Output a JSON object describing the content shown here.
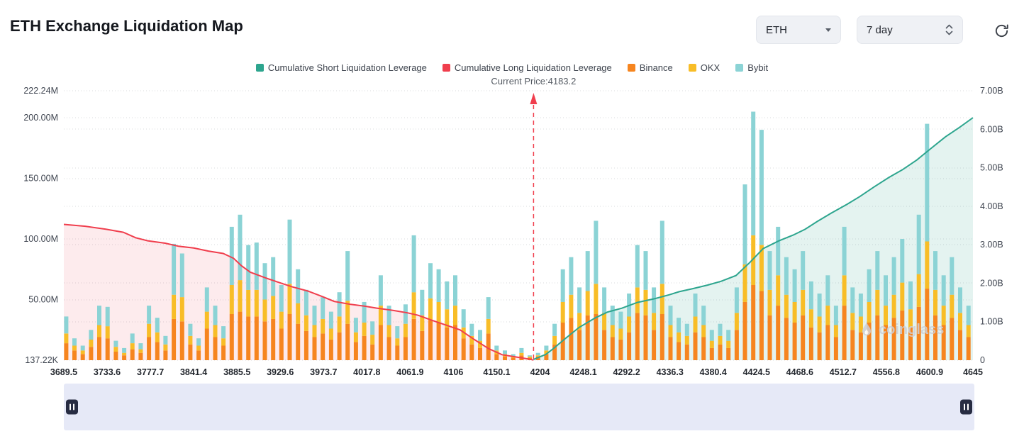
{
  "header": {
    "title": "ETH Exchange Liquidation Map",
    "coin_select": {
      "value": "ETH"
    },
    "range_select": {
      "value": "7 day"
    }
  },
  "icons": {
    "coin_caret": "chevron-down",
    "range_spinner": "chevron-up-down",
    "refresh": "circular-arrow",
    "slider_handle": "pause-bars",
    "watermark_flame": "flame"
  },
  "legend": [
    {
      "key": "short",
      "label": "Cumulative Short Liquidation Leverage",
      "color": "#2da58e"
    },
    {
      "key": "long",
      "label": "Cumulative Long Liquidation Leverage",
      "color": "#f03e4d"
    },
    {
      "key": "binance",
      "label": "Binance",
      "color": "#f6851f"
    },
    {
      "key": "okx",
      "label": "OKX",
      "color": "#f8bd27"
    },
    {
      "key": "bybit",
      "label": "Bybit",
      "color": "#8bd3d5"
    }
  ],
  "watermark": {
    "text": "coinglass"
  },
  "chart_data": {
    "type": "bar",
    "title": "ETH Exchange Liquidation Map",
    "legend_position": "top",
    "grid": "dotted-horizontal",
    "colors": {
      "short": "#2da58e",
      "long": "#f03e4d",
      "binance": "#f6851f",
      "okx": "#f8bd27",
      "bybit": "#8bd3d5",
      "long_fill": "rgba(240,62,77,0.10)",
      "short_fill": "rgba(45,165,142,0.13)"
    },
    "current_price_annotation": {
      "label": "Current Price:4183.2",
      "value": 4183.2
    },
    "x_axis": {
      "min": 3689.5,
      "max": 4645,
      "labels": [
        "3689.5",
        "3733.6",
        "3777.7",
        "3841.4",
        "3885.5",
        "3929.6",
        "3973.7",
        "4017.8",
        "4061.9",
        "4106",
        "4150.1",
        "4204",
        "4248.1",
        "4292.2",
        "4336.3",
        "4380.4",
        "4424.5",
        "4468.6",
        "4512.7",
        "4556.8",
        "4600.9",
        "4645"
      ],
      "values": [
        3689.5,
        3733.6,
        3777.7,
        3841.4,
        3885.5,
        3929.6,
        3973.7,
        4017.8,
        4061.9,
        4106,
        4150.1,
        4204,
        4248.1,
        4292.2,
        4336.3,
        4380.4,
        4424.5,
        4468.6,
        4512.7,
        4556.8,
        4600.9,
        4645
      ]
    },
    "y_axis_left": {
      "unit": "M",
      "max": 222.24,
      "labels": [
        "222.24M",
        "200.00M",
        "150.00M",
        "100.00M",
        "50.00M",
        "137.22K"
      ],
      "values": [
        222.24,
        200,
        150,
        100,
        50,
        0.13722
      ]
    },
    "y_axis_right": {
      "unit": "B",
      "max": 7,
      "labels": [
        "7.00B",
        "6.00B",
        "5.00B",
        "4.00B",
        "3.00B",
        "2.00B",
        "1.00B",
        "0"
      ],
      "values": [
        7,
        6,
        5,
        4,
        3,
        2,
        1,
        0
      ]
    },
    "bars": {
      "series_order": [
        "binance",
        "okx",
        "bybit"
      ],
      "unit": "M",
      "start_price": 3692,
      "price_step": 8.7,
      "values_millions": [
        [
          14,
          8,
          14
        ],
        [
          8,
          4,
          6
        ],
        [
          5,
          3,
          4
        ],
        [
          11,
          6,
          8
        ],
        [
          19,
          10,
          16
        ],
        [
          18,
          10,
          16
        ],
        [
          7,
          4,
          5
        ],
        [
          4,
          2,
          4
        ],
        [
          9,
          5,
          8
        ],
        [
          6,
          3,
          5
        ],
        [
          19,
          11,
          15
        ],
        [
          15,
          8,
          12
        ],
        [
          8,
          5,
          7
        ],
        [
          34,
          20,
          42
        ],
        [
          32,
          20,
          36
        ],
        [
          13,
          7,
          10
        ],
        [
          8,
          4,
          6
        ],
        [
          26,
          14,
          20
        ],
        [
          19,
          10,
          16
        ],
        [
          12,
          6,
          10
        ],
        [
          38,
          24,
          48
        ],
        [
          40,
          26,
          54
        ],
        [
          36,
          22,
          37
        ],
        [
          36,
          22,
          39
        ],
        [
          32,
          18,
          30
        ],
        [
          34,
          19,
          32
        ],
        [
          26,
          14,
          22
        ],
        [
          38,
          25,
          53
        ],
        [
          30,
          17,
          28
        ],
        [
          24,
          13,
          21
        ],
        [
          19,
          10,
          16
        ],
        [
          22,
          12,
          18
        ],
        [
          17,
          9,
          14
        ],
        [
          23,
          13,
          20
        ],
        [
          30,
          19,
          41
        ],
        [
          15,
          8,
          12
        ],
        [
          20,
          11,
          17
        ],
        [
          13,
          8,
          11
        ],
        [
          29,
          16,
          25
        ],
        [
          19,
          10,
          16
        ],
        [
          12,
          6,
          10
        ],
        [
          19,
          11,
          16
        ],
        [
          34,
          22,
          47
        ],
        [
          24,
          13,
          21
        ],
        [
          33,
          18,
          29
        ],
        [
          31,
          17,
          27
        ],
        [
          27,
          15,
          23
        ],
        [
          29,
          16,
          25
        ],
        [
          18,
          9,
          15
        ],
        [
          13,
          7,
          10
        ],
        [
          10,
          6,
          9
        ],
        [
          22,
          12,
          18
        ],
        [
          5,
          3,
          4
        ],
        [
          3,
          2,
          3
        ],
        [
          2,
          1,
          2
        ],
        [
          4,
          2,
          4
        ],
        [
          2,
          1,
          1
        ],
        [
          3,
          1,
          2
        ],
        [
          5,
          3,
          4
        ],
        [
          13,
          7,
          10
        ],
        [
          31,
          17,
          27
        ],
        [
          35,
          19,
          31
        ],
        [
          25,
          14,
          21
        ],
        [
          37,
          20,
          33
        ],
        [
          38,
          25,
          52
        ],
        [
          25,
          14,
          21
        ],
        [
          19,
          10,
          16
        ],
        [
          17,
          9,
          14
        ],
        [
          23,
          13,
          19
        ],
        [
          39,
          21,
          35
        ],
        [
          37,
          21,
          32
        ],
        [
          25,
          14,
          21
        ],
        [
          38,
          25,
          52
        ],
        [
          19,
          10,
          16
        ],
        [
          15,
          8,
          12
        ],
        [
          13,
          7,
          10
        ],
        [
          23,
          13,
          19
        ],
        [
          19,
          10,
          16
        ],
        [
          10,
          6,
          9
        ],
        [
          13,
          7,
          10
        ],
        [
          10,
          6,
          9
        ],
        [
          25,
          14,
          21
        ],
        [
          48,
          31,
          66
        ],
        [
          62,
          41,
          102
        ],
        [
          57,
          38,
          95
        ],
        [
          37,
          21,
          32
        ],
        [
          45,
          25,
          40
        ],
        [
          35,
          19,
          31
        ],
        [
          31,
          17,
          27
        ],
        [
          37,
          21,
          32
        ],
        [
          27,
          15,
          23
        ],
        [
          23,
          13,
          19
        ],
        [
          29,
          16,
          25
        ],
        [
          19,
          10,
          16
        ],
        [
          45,
          25,
          40
        ],
        [
          25,
          14,
          21
        ],
        [
          23,
          13,
          19
        ],
        [
          31,
          17,
          27
        ],
        [
          37,
          21,
          32
        ],
        [
          29,
          16,
          25
        ],
        [
          35,
          19,
          31
        ],
        [
          41,
          23,
          36
        ],
        [
          27,
          15,
          23
        ],
        [
          44,
          27,
          49
        ],
        [
          59,
          39,
          97
        ],
        [
          37,
          21,
          32
        ],
        [
          29,
          16,
          25
        ],
        [
          35,
          19,
          31
        ],
        [
          25,
          14,
          21
        ],
        [
          19,
          10,
          16
        ]
      ]
    },
    "long_line_millions": [
      [
        3689.5,
        112
      ],
      [
        3712,
        110.5
      ],
      [
        3733.6,
        108
      ],
      [
        3752,
        105.5
      ],
      [
        3765,
        101
      ],
      [
        3777.7,
        98.5
      ],
      [
        3796,
        96.5
      ],
      [
        3810,
        94
      ],
      [
        3826,
        92.5
      ],
      [
        3841.4,
        90
      ],
      [
        3857,
        88
      ],
      [
        3868,
        84
      ],
      [
        3876,
        78
      ],
      [
        3885.5,
        72.5
      ],
      [
        3901,
        68
      ],
      [
        3916,
        64
      ],
      [
        3929.6,
        60.5
      ],
      [
        3946,
        57
      ],
      [
        3961,
        52.5
      ],
      [
        3973.7,
        48.5
      ],
      [
        3991,
        46
      ],
      [
        4006,
        44.5
      ],
      [
        4017.8,
        43
      ],
      [
        4036,
        41
      ],
      [
        4051,
        39
      ],
      [
        4061.9,
        37
      ],
      [
        4076,
        33
      ],
      [
        4091,
        29
      ],
      [
        4106,
        25
      ],
      [
        4121,
        17
      ],
      [
        4136,
        9.5
      ],
      [
        4150.1,
        4.5
      ],
      [
        4166,
        2.5
      ],
      [
        4178,
        1
      ],
      [
        4183.2,
        0.1
      ]
    ],
    "short_line_billions": [
      [
        4183.2,
        0.02
      ],
      [
        4196,
        0.15
      ],
      [
        4204,
        0.3
      ],
      [
        4216,
        0.55
      ],
      [
        4231,
        0.85
      ],
      [
        4248.1,
        1.1
      ],
      [
        4261,
        1.25
      ],
      [
        4276,
        1.35
      ],
      [
        4292.2,
        1.5
      ],
      [
        4311,
        1.6
      ],
      [
        4326,
        1.7
      ],
      [
        4336.3,
        1.78
      ],
      [
        4351,
        1.86
      ],
      [
        4366,
        1.95
      ],
      [
        4380.4,
        2.05
      ],
      [
        4396,
        2.2
      ],
      [
        4411,
        2.55
      ],
      [
        4424.5,
        2.9
      ],
      [
        4441,
        3.1
      ],
      [
        4456,
        3.25
      ],
      [
        4468.6,
        3.4
      ],
      [
        4481,
        3.6
      ],
      [
        4496,
        3.82
      ],
      [
        4512.7,
        4.05
      ],
      [
        4526,
        4.25
      ],
      [
        4541,
        4.5
      ],
      [
        4556.8,
        4.75
      ],
      [
        4571,
        4.95
      ],
      [
        4586,
        5.2
      ],
      [
        4600.9,
        5.5
      ],
      [
        4616,
        5.8
      ],
      [
        4631,
        6.05
      ],
      [
        4645,
        6.3
      ]
    ]
  }
}
